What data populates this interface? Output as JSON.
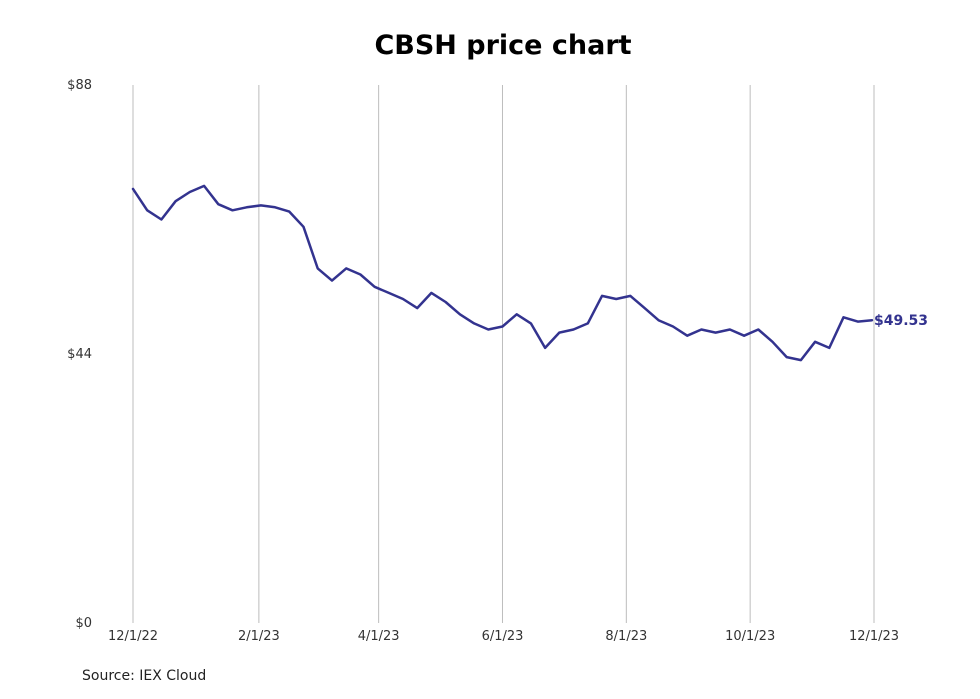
{
  "chart_data": {
    "type": "line",
    "title": "CBSH price chart",
    "source": "Source: IEX Cloud",
    "ylim": [
      0,
      88
    ],
    "y_ticks": [
      {
        "value": 0,
        "label": "$0"
      },
      {
        "value": 44,
        "label": "$44"
      },
      {
        "value": 88,
        "label": "$88"
      }
    ],
    "x_ticks": [
      "12/1/22",
      "2/1/23",
      "4/1/23",
      "6/1/23",
      "8/1/23",
      "10/1/23",
      "12/1/23"
    ],
    "grid": "vertical",
    "line_color": "#33338f",
    "last_value_label": "$49.53",
    "series": [
      {
        "x": [
          "2022-12-01",
          "2022-12-08",
          "2022-12-15",
          "2022-12-22",
          "2022-12-29",
          "2023-01-05",
          "2023-01-12",
          "2023-01-19",
          "2023-01-26",
          "2023-02-02",
          "2023-02-09",
          "2023-02-16",
          "2023-02-23",
          "2023-03-02",
          "2023-03-09",
          "2023-03-16",
          "2023-03-23",
          "2023-03-30",
          "2023-04-06",
          "2023-04-13",
          "2023-04-20",
          "2023-04-27",
          "2023-05-04",
          "2023-05-11",
          "2023-05-18",
          "2023-05-25",
          "2023-06-01",
          "2023-06-08",
          "2023-06-15",
          "2023-06-22",
          "2023-06-29",
          "2023-07-06",
          "2023-07-13",
          "2023-07-20",
          "2023-07-27",
          "2023-08-03",
          "2023-08-10",
          "2023-08-17",
          "2023-08-24",
          "2023-08-31",
          "2023-09-07",
          "2023-09-14",
          "2023-09-21",
          "2023-09-28",
          "2023-10-05",
          "2023-10-12",
          "2023-10-19",
          "2023-10-26",
          "2023-11-02",
          "2023-11-09",
          "2023-11-16",
          "2023-11-23",
          "2023-11-30"
        ],
        "values": [
          71.0,
          67.5,
          66.0,
          69.0,
          70.5,
          71.5,
          68.5,
          67.5,
          68.0,
          68.3,
          68.0,
          67.3,
          64.8,
          58.0,
          56.0,
          58.0,
          57.0,
          55.0,
          54.0,
          53.0,
          51.5,
          54.0,
          52.5,
          50.5,
          49.0,
          48.0,
          48.5,
          50.5,
          49.0,
          45.0,
          47.5,
          48.0,
          49.0,
          53.5,
          53.0,
          53.5,
          51.5,
          49.5,
          48.5,
          47.0,
          48.0,
          47.5,
          48.0,
          47.0,
          48.0,
          46.0,
          43.5,
          43.0,
          46.0,
          45.0,
          50.0,
          49.3,
          49.53
        ]
      }
    ]
  }
}
